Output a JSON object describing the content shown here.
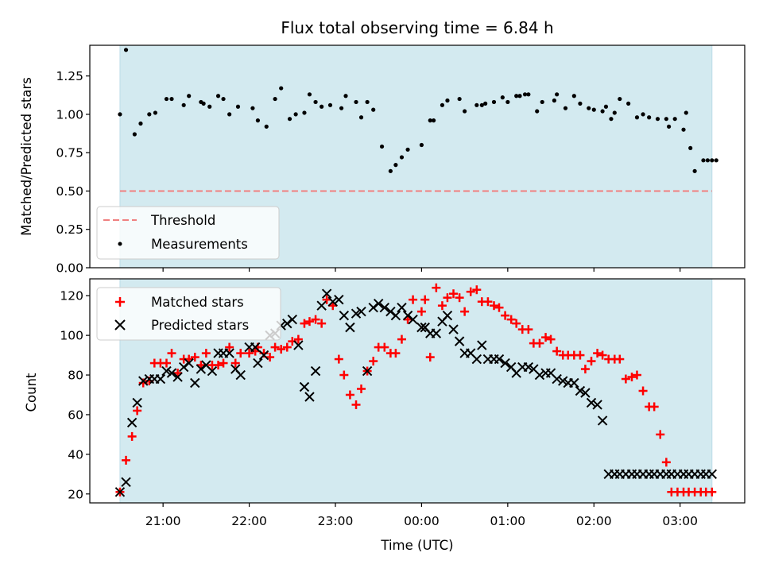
{
  "chart_data": [
    {
      "type": "scatter",
      "panel": "top",
      "title": "Flux total observing time = 6.84 h",
      "xlabel": "",
      "ylabel": "Matched/Predicted stars",
      "ylim": [
        0,
        1.45
      ],
      "yticks": [
        0.0,
        0.25,
        0.5,
        0.75,
        1.0,
        1.25
      ],
      "ytick_labels": [
        "0.00",
        "0.25",
        "0.50",
        "0.75",
        "1.00",
        "1.25"
      ],
      "xlim_hours": [
        20.15,
        27.75
      ],
      "observing_window_hours": [
        20.5,
        27.37
      ],
      "shading_color": "#d3eaf0",
      "threshold": {
        "name": "Threshold",
        "value": 0.5,
        "color": "#f08080",
        "style": "dashed"
      },
      "legend_position": "lower-left",
      "series": [
        {
          "name": "Measurements",
          "color": "#000000",
          "marker": "dot",
          "x": [
            20.5,
            20.57,
            20.67,
            20.74,
            20.84,
            20.91,
            21.04,
            21.1,
            21.24,
            21.3,
            21.44,
            21.47,
            21.54,
            21.64,
            21.7,
            21.77,
            21.87,
            22.04,
            22.1,
            22.2,
            22.3,
            22.37,
            22.47,
            22.54,
            22.64,
            22.7,
            22.77,
            22.84,
            22.94,
            23.07,
            23.12,
            23.24,
            23.3,
            23.37,
            23.44,
            23.54,
            23.64,
            23.7,
            23.77,
            23.84,
            24.0,
            24.1,
            24.14,
            24.24,
            24.3,
            24.44,
            24.5,
            24.64,
            24.7,
            24.74,
            24.84,
            24.94,
            25.0,
            25.1,
            25.14,
            25.2,
            25.24,
            25.34,
            25.4,
            25.54,
            25.57,
            25.67,
            25.77,
            25.84,
            25.94,
            26.0,
            26.1,
            26.14,
            26.2,
            26.24,
            26.3,
            26.4,
            26.5,
            26.57,
            26.64,
            26.74,
            26.84,
            26.87,
            26.94,
            27.04,
            27.07,
            27.12,
            27.17,
            27.27,
            27.32,
            27.37,
            27.42
          ],
          "y": [
            1.0,
            1.42,
            0.87,
            0.94,
            1.0,
            1.01,
            1.1,
            1.1,
            1.06,
            1.12,
            1.08,
            1.07,
            1.05,
            1.12,
            1.1,
            1.0,
            1.05,
            1.04,
            0.96,
            0.92,
            1.1,
            1.17,
            0.97,
            1.0,
            1.01,
            1.13,
            1.08,
            1.05,
            1.06,
            1.04,
            1.12,
            1.08,
            0.98,
            1.08,
            1.03,
            0.79,
            0.63,
            0.67,
            0.72,
            0.77,
            0.8,
            0.96,
            0.96,
            1.06,
            1.09,
            1.1,
            1.02,
            1.06,
            1.06,
            1.07,
            1.08,
            1.11,
            1.08,
            1.12,
            1.12,
            1.13,
            1.13,
            1.02,
            1.08,
            1.09,
            1.13,
            1.04,
            1.12,
            1.07,
            1.04,
            1.03,
            1.02,
            1.05,
            0.97,
            1.01,
            1.1,
            1.07,
            0.98,
            1.0,
            0.98,
            0.97,
            0.97,
            0.92,
            0.97,
            0.9,
            1.01,
            0.78,
            0.63,
            0.7,
            0.7,
            0.7,
            0.7
          ]
        }
      ]
    },
    {
      "type": "scatter",
      "panel": "bottom",
      "title": "",
      "xlabel": "Time (UTC)",
      "ylabel": "Count",
      "ylim": [
        15.5,
        128.5
      ],
      "yticks": [
        20,
        40,
        60,
        80,
        100,
        120
      ],
      "ytick_labels": [
        "20",
        "40",
        "60",
        "80",
        "100",
        "120"
      ],
      "xticks_hours": [
        21,
        22,
        23,
        24,
        25,
        26,
        27
      ],
      "xtick_labels": [
        "21:00",
        "22:00",
        "23:00",
        "00:00",
        "01:00",
        "02:00",
        "03:00"
      ],
      "xlim_hours": [
        20.15,
        27.75
      ],
      "observing_window_hours": [
        20.5,
        27.37
      ],
      "shading_color": "#d3eaf0",
      "legend_position": "upper-left",
      "series": [
        {
          "name": "Matched stars",
          "color": "#ff0000",
          "marker": "plus",
          "x": [
            20.5,
            20.57,
            20.64,
            20.7,
            20.77,
            20.84,
            20.9,
            20.97,
            21.04,
            21.1,
            21.17,
            21.24,
            21.3,
            21.37,
            21.44,
            21.5,
            21.57,
            21.64,
            21.7,
            21.77,
            21.84,
            21.9,
            22.0,
            22.07,
            22.1,
            22.17,
            22.24,
            22.3,
            22.37,
            22.44,
            22.5,
            22.57,
            22.64,
            22.7,
            22.77,
            22.84,
            22.9,
            22.97,
            23.04,
            23.1,
            23.17,
            23.24,
            23.3,
            23.37,
            23.44,
            23.5,
            23.57,
            23.64,
            23.7,
            23.77,
            23.84,
            23.9,
            24.0,
            24.04,
            24.1,
            24.17,
            24.24,
            24.3,
            24.37,
            24.44,
            24.5,
            24.57,
            24.64,
            24.7,
            24.77,
            24.84,
            24.9,
            24.97,
            25.04,
            25.1,
            25.17,
            25.24,
            25.3,
            25.37,
            25.44,
            25.5,
            25.57,
            25.64,
            25.7,
            25.77,
            25.84,
            25.9,
            25.97,
            26.04,
            26.1,
            26.17,
            26.24,
            26.3,
            26.37,
            26.44,
            26.5,
            26.57,
            26.64,
            26.7,
            26.77,
            26.84,
            26.9,
            26.97,
            27.04,
            27.1,
            27.17,
            27.24,
            27.3,
            27.37,
            27.42,
            27.48
          ],
          "y": [
            21,
            37,
            49,
            62,
            76,
            77,
            86,
            86,
            86,
            91,
            81,
            88,
            88,
            89,
            85,
            91,
            85,
            85,
            86,
            94,
            86,
            91,
            91,
            92,
            94,
            91,
            89,
            94,
            93,
            94,
            97,
            98,
            106,
            107,
            108,
            106,
            118,
            115,
            88,
            80,
            70,
            65,
            73,
            82,
            87,
            94,
            94,
            91,
            91,
            98,
            108,
            118,
            112,
            118,
            89,
            124,
            115,
            119,
            121,
            119,
            112,
            122,
            123,
            117,
            117,
            115,
            114,
            110,
            108,
            106,
            103,
            103,
            96,
            96,
            99,
            98,
            92,
            90,
            90,
            90,
            90,
            83,
            87,
            91,
            90,
            88,
            88,
            88,
            78,
            79,
            80,
            72,
            64,
            64,
            50,
            36,
            21,
            21,
            21,
            21,
            21,
            21,
            21,
            21,
            21,
            21
          ],
          "note": "values read approximately from gridlines"
        },
        {
          "name": "Predicted stars",
          "color": "#000000",
          "marker": "x",
          "x": [
            20.5,
            20.57,
            20.64,
            20.7,
            20.77,
            20.84,
            20.9,
            20.97,
            21.04,
            21.1,
            21.17,
            21.24,
            21.3,
            21.37,
            21.44,
            21.5,
            21.57,
            21.64,
            21.7,
            21.77,
            21.84,
            21.9,
            22.0,
            22.07,
            22.1,
            22.17,
            22.24,
            22.3,
            22.37,
            22.44,
            22.5,
            22.57,
            22.64,
            22.7,
            22.77,
            22.84,
            22.9,
            22.97,
            23.04,
            23.1,
            23.17,
            23.24,
            23.3,
            23.37,
            23.44,
            23.5,
            23.57,
            23.64,
            23.7,
            23.77,
            23.84,
            23.9,
            24.0,
            24.04,
            24.1,
            24.17,
            24.24,
            24.3,
            24.37,
            24.44,
            24.5,
            24.57,
            24.64,
            24.7,
            24.77,
            24.84,
            24.9,
            24.97,
            25.04,
            25.1,
            25.17,
            25.24,
            25.3,
            25.37,
            25.44,
            25.5,
            25.57,
            25.64,
            25.7,
            25.77,
            25.84,
            25.9,
            25.97,
            26.04,
            26.1,
            26.17,
            26.24,
            26.3,
            26.37,
            26.44,
            26.5,
            26.57,
            26.64,
            26.7,
            26.77,
            26.84,
            26.9,
            26.97,
            27.04,
            27.1,
            27.17,
            27.24,
            27.3,
            27.37,
            27.42,
            27.48
          ],
          "y": [
            21,
            26,
            56,
            66,
            77,
            78,
            78,
            78,
            82,
            81,
            79,
            84,
            86,
            76,
            83,
            85,
            82,
            91,
            91,
            91,
            83,
            80,
            94,
            94,
            86,
            90,
            100,
            101,
            105,
            106,
            108,
            95,
            74,
            69,
            82,
            115,
            121,
            117,
            118,
            110,
            104,
            111,
            112,
            82,
            114,
            116,
            114,
            112,
            110,
            114,
            110,
            108,
            104,
            104,
            101,
            101,
            107,
            110,
            103,
            97,
            91,
            91,
            88,
            95,
            88,
            88,
            88,
            86,
            84,
            81,
            84,
            84,
            83,
            80,
            81,
            81,
            78,
            77,
            76,
            76,
            72,
            71,
            66,
            65,
            57,
            30,
            30,
            30,
            30,
            30,
            30,
            30,
            30,
            30,
            30,
            30,
            30,
            30,
            30,
            30,
            30,
            30,
            30,
            30,
            30,
            30
          ]
        }
      ]
    }
  ]
}
